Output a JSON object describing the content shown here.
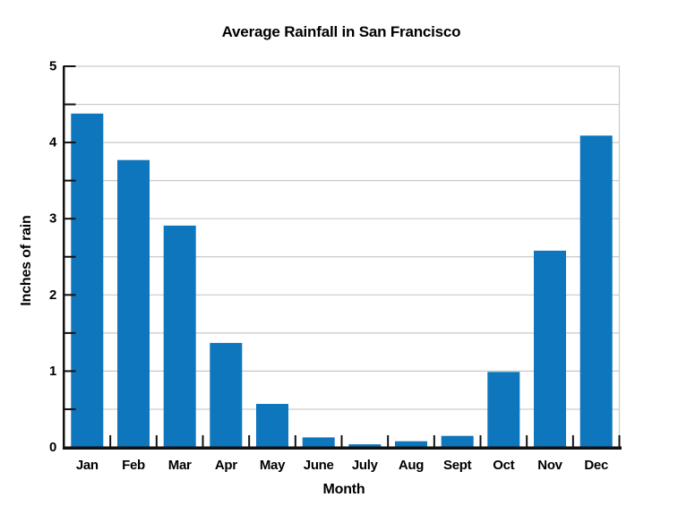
{
  "chart_data": {
    "type": "bar",
    "title": "Average Rainfall in San Francisco",
    "xlabel": "Month",
    "ylabel": "Inches of rain",
    "categories": [
      "Jan",
      "Feb",
      "Mar",
      "Apr",
      "May",
      "June",
      "July",
      "Aug",
      "Sept",
      "Oct",
      "Nov",
      "Dec"
    ],
    "values": [
      4.38,
      3.77,
      2.91,
      1.37,
      0.57,
      0.13,
      0.04,
      0.08,
      0.15,
      0.99,
      2.58,
      4.09
    ],
    "ylim": [
      0,
      5
    ],
    "ytick_labeled_interval": 1,
    "ytick_minor_interval": 0.5,
    "yticklabels": [
      "0",
      "1",
      "2",
      "3",
      "4",
      "5"
    ],
    "grid": "horizontal gridlines every 0.5",
    "legend": "none",
    "bar_color": "#0e76bc",
    "grid_color": "#c9c9c9",
    "axis_color": "#111111",
    "background_color": "#ffffff"
  }
}
